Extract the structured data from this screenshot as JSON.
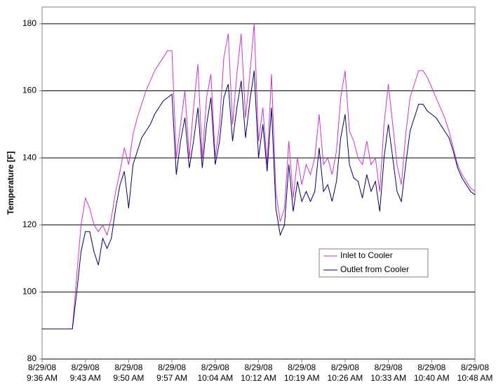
{
  "chart_data": {
    "type": "line",
    "ylabel": "Temperature [F]",
    "categories": [
      "8/29/08\n9:36 AM",
      null,
      null,
      null,
      null,
      null,
      null,
      null,
      null,
      null,
      "8/29/08\n9:43 AM",
      null,
      null,
      null,
      null,
      null,
      null,
      null,
      null,
      null,
      "8/29/08\n9:50 AM",
      null,
      null,
      null,
      null,
      null,
      null,
      null,
      null,
      null,
      "8/29/08\n9:57 AM",
      null,
      null,
      null,
      null,
      null,
      null,
      null,
      null,
      null,
      "8/29/08\n10:04 AM",
      null,
      null,
      null,
      null,
      null,
      null,
      null,
      null,
      null,
      "8/29/08\n10:12 AM",
      null,
      null,
      null,
      null,
      null,
      null,
      null,
      null,
      null,
      "8/29/08\n10:19 AM",
      null,
      null,
      null,
      null,
      null,
      null,
      null,
      null,
      null,
      "8/29/08\n10:26 AM",
      null,
      null,
      null,
      null,
      null,
      null,
      null,
      null,
      null,
      "8/29/08\n10:33 AM",
      null,
      null,
      null,
      null,
      null,
      null,
      null,
      null,
      null,
      "8/29/08\n10:40 AM",
      null,
      null,
      null,
      null,
      null,
      null,
      null,
      null,
      null,
      "8/29/08\n10:48 AM"
    ],
    "series": [
      {
        "name": "Inlet to Cooler",
        "color": "#cc33cc",
        "values": [
          89,
          89,
          89,
          89,
          89,
          89,
          89,
          89,
          105,
          120,
          128,
          125,
          120,
          118,
          120,
          117,
          122,
          130,
          136,
          143,
          138,
          147,
          152,
          156,
          160,
          163,
          166,
          168,
          170,
          172,
          172,
          140,
          150,
          160,
          140,
          155,
          168,
          140,
          158,
          165,
          140,
          150,
          170,
          177,
          150,
          165,
          177,
          152,
          165,
          180,
          145,
          155,
          138,
          165,
          130,
          121,
          125,
          145,
          128,
          140,
          132,
          138,
          135,
          140,
          153,
          138,
          140,
          135,
          142,
          158,
          166,
          148,
          145,
          140,
          138,
          145,
          138,
          140,
          130,
          150,
          162,
          150,
          138,
          132,
          147,
          158,
          162,
          166,
          166,
          164,
          161,
          158,
          155,
          152,
          148,
          143,
          138,
          135,
          133,
          131,
          130
        ]
      },
      {
        "name": "Outlet from Cooler",
        "color": "#000066",
        "values": [
          89,
          89,
          89,
          89,
          89,
          89,
          89,
          89,
          100,
          112,
          118,
          118,
          112,
          108,
          116,
          113,
          116,
          125,
          132,
          136,
          125,
          138,
          142,
          146,
          148,
          150,
          153,
          155,
          157,
          158,
          159,
          135,
          145,
          152,
          137,
          145,
          155,
          137,
          150,
          158,
          138,
          145,
          158,
          162,
          145,
          155,
          163,
          146,
          157,
          166,
          140,
          150,
          136,
          155,
          125,
          117,
          120,
          138,
          124,
          133,
          127,
          130,
          127,
          130,
          143,
          130,
          132,
          127,
          133,
          146,
          153,
          138,
          134,
          133,
          128,
          135,
          130,
          133,
          124,
          140,
          150,
          140,
          130,
          127,
          138,
          148,
          152,
          156,
          156,
          154,
          153,
          152,
          150,
          148,
          146,
          142,
          137,
          134,
          132,
          130,
          129
        ]
      }
    ],
    "ylim": [
      80,
      185
    ],
    "yticks": [
      80,
      100,
      120,
      140,
      160,
      180
    ],
    "grid": true,
    "legend": "lower-right"
  }
}
